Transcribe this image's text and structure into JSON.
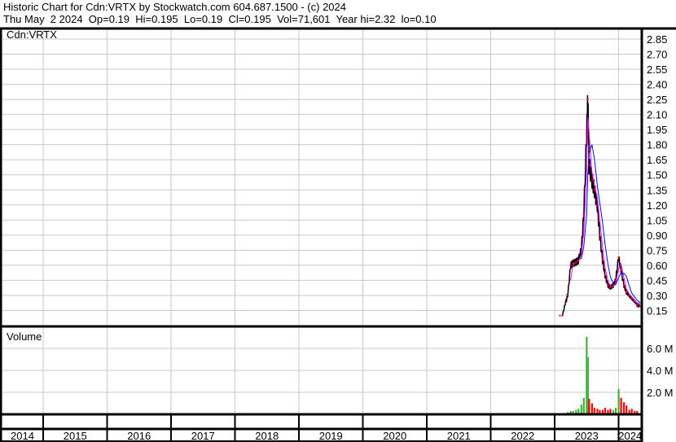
{
  "header": {
    "title": "Historic Chart for Cdn:VRTX by Stockwatch.com 604.687.1500 - (c) 2024",
    "quote_line": "Thu May  2 2024  Op=0.19  Hi=0.195  Lo=0.19  Cl=0.195  Vol=71,601  Year hi=2.32  lo=0.10"
  },
  "chart_data": [
    {
      "type": "line",
      "panel": "price",
      "title": "Cdn:VRTX",
      "y_ticks": [
        "0.15",
        "0.30",
        "0.45",
        "0.60",
        "0.75",
        "0.90",
        "1.05",
        "1.20",
        "1.35",
        "1.50",
        "1.65",
        "1.80",
        "1.95",
        "2.10",
        "2.25",
        "2.40",
        "2.55",
        "2.70",
        "2.85"
      ],
      "ylim": [
        0,
        2.85
      ],
      "x_ticks": [
        "2014",
        "2015",
        "2016",
        "2017",
        "2018",
        "2019",
        "2020",
        "2021",
        "2022",
        "2023",
        "2024"
      ],
      "grid": true,
      "colors": {
        "price": "#000000",
        "close_dot": "#ff0000",
        "ma_short": "#ff00ff",
        "ma_long": "#0000ff"
      },
      "dates": [
        "2023-02-01",
        "2023-02-15",
        "2023-03-01",
        "2023-03-15",
        "2023-04-01",
        "2023-04-15",
        "2023-05-01",
        "2023-05-15",
        "2023-06-01",
        "2023-06-15",
        "2023-07-01",
        "2023-07-08",
        "2023-07-15",
        "2023-08-01",
        "2023-08-15",
        "2023-09-01",
        "2023-09-15",
        "2023-10-01",
        "2023-10-15",
        "2023-11-01",
        "2023-11-15",
        "2023-12-01",
        "2023-12-15",
        "2024-01-01",
        "2024-01-15",
        "2024-02-01",
        "2024-02-15",
        "2024-03-01",
        "2024-03-15",
        "2024-04-01",
        "2024-04-15",
        "2024-05-02"
      ],
      "close": [
        0.1,
        0.1,
        0.22,
        0.3,
        0.6,
        0.62,
        0.63,
        0.65,
        0.75,
        1.1,
        1.9,
        2.25,
        1.6,
        1.45,
        1.35,
        1.2,
        0.9,
        0.65,
        0.5,
        0.4,
        0.38,
        0.4,
        0.45,
        0.68,
        0.55,
        0.4,
        0.33,
        0.3,
        0.27,
        0.24,
        0.21,
        0.195
      ]
    },
    {
      "type": "bar",
      "panel": "volume",
      "title": "Volume",
      "y_ticks": [
        "2.0 M",
        "4.0 M",
        "6.0 M"
      ],
      "ylim": [
        0,
        8
      ],
      "unit": "millions",
      "colors": {
        "up": "#40b040",
        "down": "#ff0000"
      },
      "values": [
        0.05,
        0.05,
        0.1,
        0.2,
        0.3,
        0.3,
        0.4,
        0.5,
        0.9,
        1.5,
        8.0,
        5.2,
        1.4,
        1.0,
        0.6,
        0.5,
        0.4,
        0.4,
        0.6,
        0.4,
        0.5,
        0.4,
        0.6,
        2.3,
        1.5,
        1.1,
        0.8,
        0.4,
        0.5,
        0.3,
        0.3,
        0.07
      ]
    }
  ]
}
